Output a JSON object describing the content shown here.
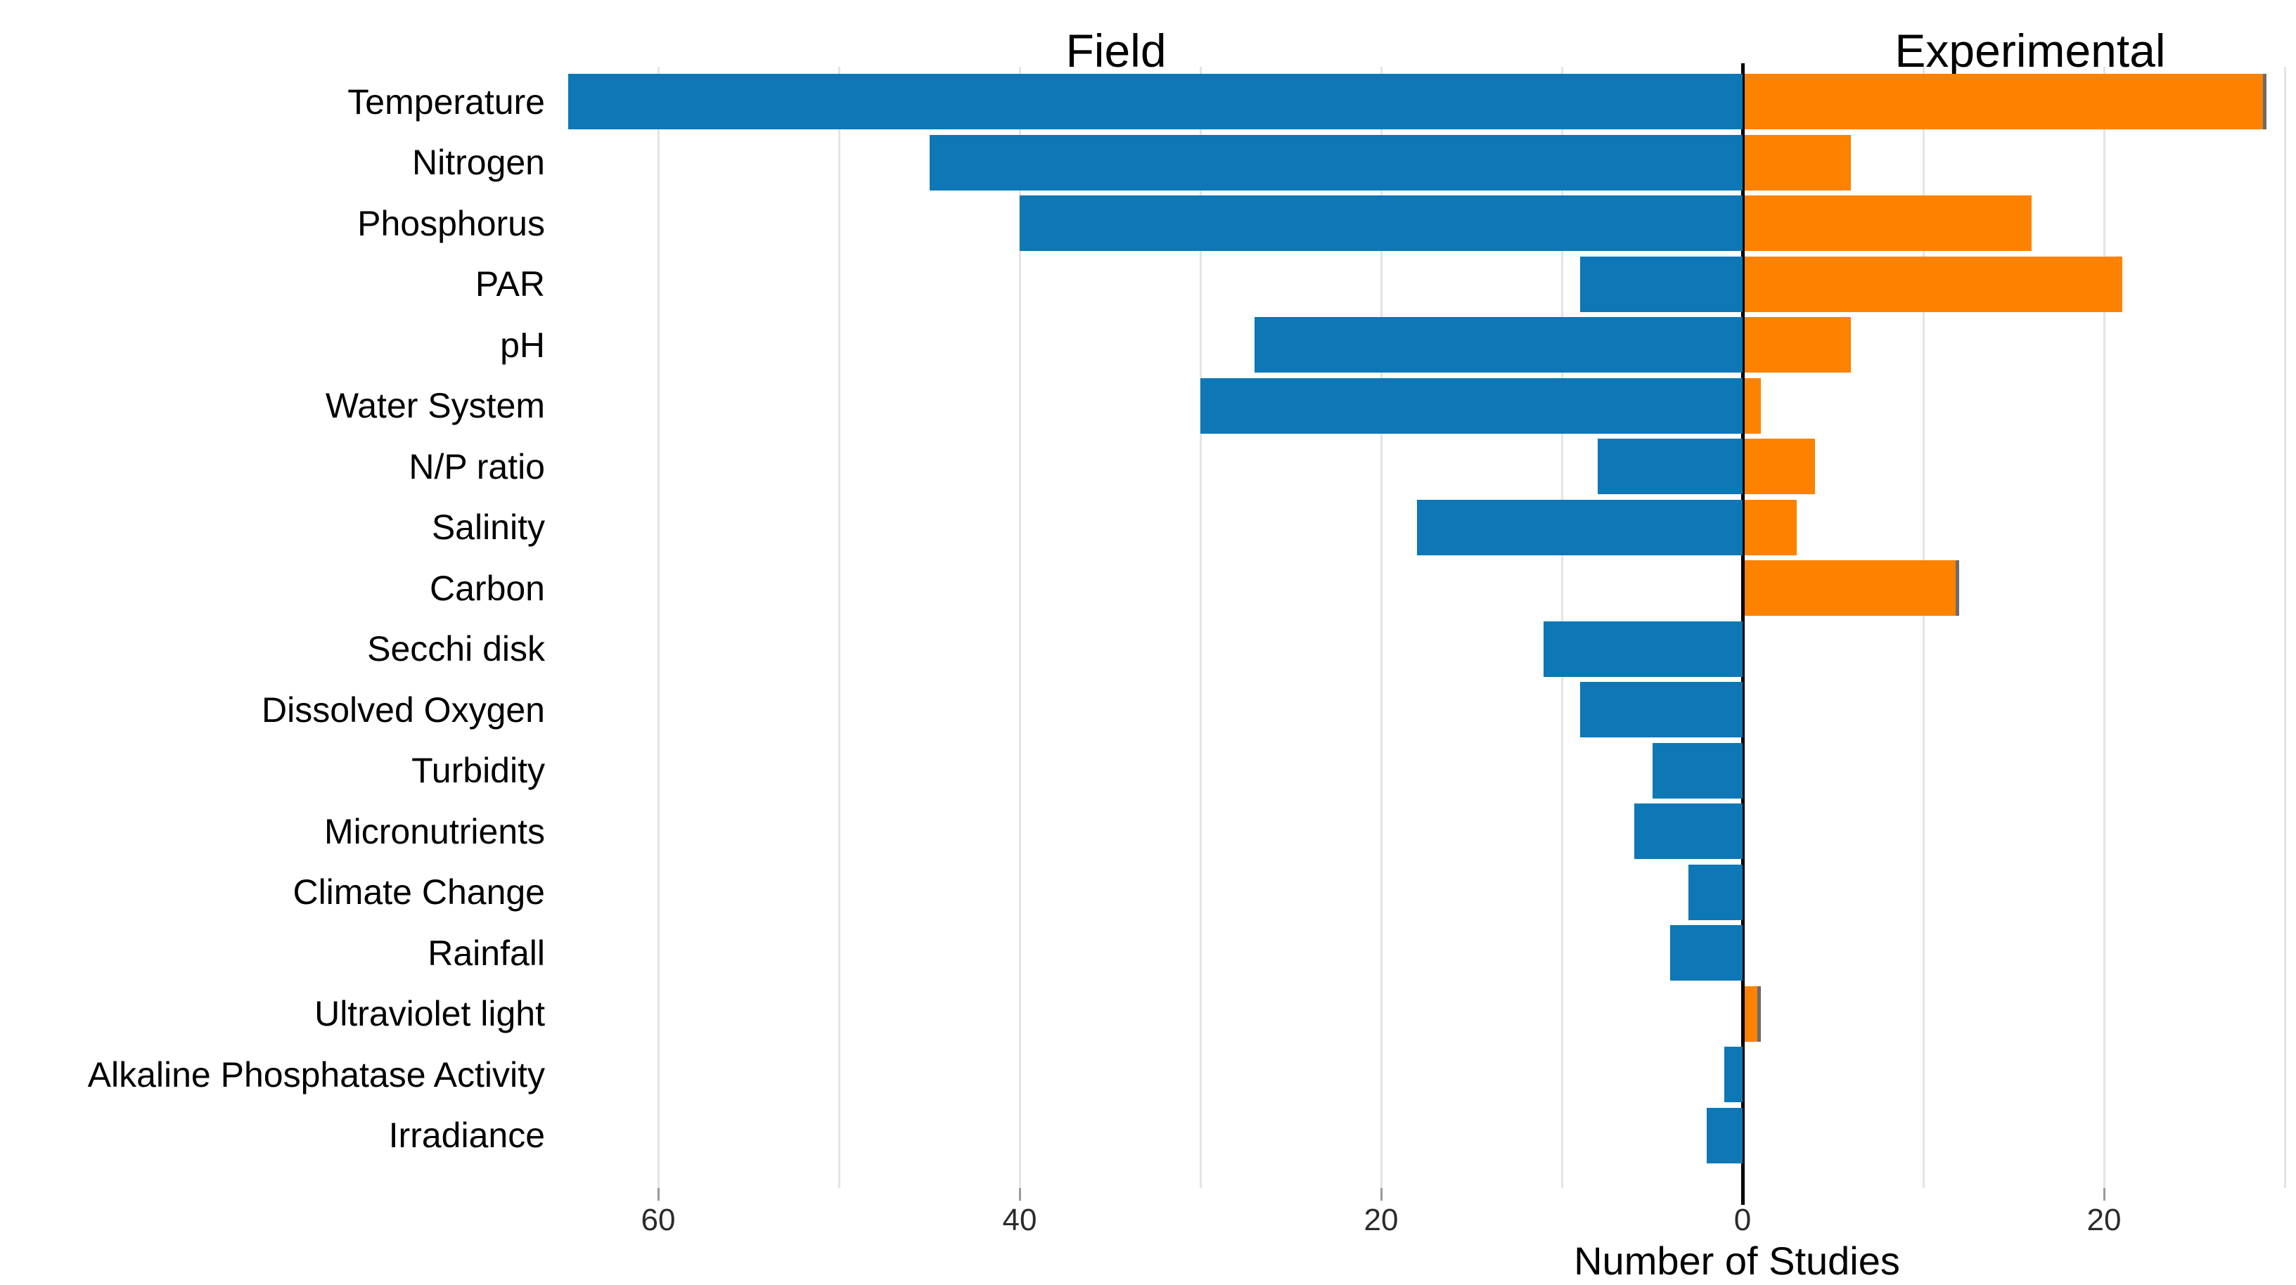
{
  "chart_data": {
    "type": "bar",
    "variant": "diverging-horizontal",
    "panel_titles": {
      "left": "Field",
      "right": "Experimental"
    },
    "xlabel": "Number of Studies",
    "categories": [
      "Temperature",
      "Nitrogen",
      "Phosphorus",
      "PAR",
      "pH",
      "Water System",
      "N/P ratio",
      "Salinity",
      "Carbon",
      "Secchi disk",
      "Dissolved Oxygen",
      "Turbidity",
      "Micronutrients",
      "Climate Change",
      "Rainfall",
      "Ultraviolet light",
      "Alkaline Phosphatase Activity",
      "Irradiance"
    ],
    "series": [
      {
        "name": "Field",
        "side": "left",
        "values": [
          65,
          45,
          40,
          9,
          27,
          30,
          8,
          18,
          0,
          11,
          9,
          5,
          6,
          3,
          4,
          0,
          1,
          2
        ]
      },
      {
        "name": "Experimental",
        "side": "right",
        "values": [
          29,
          6,
          16,
          21,
          6,
          1,
          4,
          3,
          12,
          0,
          0,
          0,
          0,
          0,
          0,
          1,
          0,
          0
        ]
      }
    ],
    "x_axis": {
      "ticks": [
        {
          "label": "60",
          "units": -60
        },
        {
          "label": "40",
          "units": -40
        },
        {
          "label": "20",
          "units": -20
        },
        {
          "label": "0",
          "units": 0
        },
        {
          "label": "20",
          "units": 20
        }
      ],
      "grid_units": [
        -60,
        -50,
        -40,
        -30,
        -20,
        -10,
        10,
        20,
        30
      ],
      "range_left_max": 70,
      "range_right_max": 30.6,
      "grid": true
    },
    "legend": "none",
    "end_marker_categories_experimental": [
      "Temperature",
      "Carbon",
      "Ultraviolet light"
    ]
  },
  "colors": {
    "field_bar": "#0e77b6",
    "experimental_bar": "#fd8200",
    "axis_zero_line": "#000000",
    "gridline": "#e4e4e4",
    "tick_stub": "#9a9a9a",
    "end_marker": "#6b6b6b",
    "text": "#000000",
    "tick_text": "#2b2b2b",
    "background": "#ffffff"
  }
}
